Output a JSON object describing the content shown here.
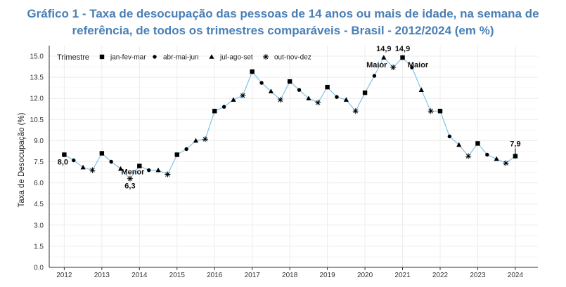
{
  "chart_data": {
    "type": "line",
    "title_line1": "Gráfico 1 - Taxa de desocupação das pessoas de 14 anos ou mais de idade, na semana de",
    "title_line2": "referência, de todos os trimestres comparáveis - Brasil - 2012/2024 (em %)",
    "ylabel": "Taxa de Desocupação (%)",
    "xlabel": "",
    "ylim": [
      0,
      15.0
    ],
    "yticks": [
      "0.0",
      "1.5",
      "3.0",
      "4.5",
      "6.0",
      "7.5",
      "9.0",
      "10.5",
      "12.0",
      "13.5",
      "15.0"
    ],
    "xticks": [
      "2012",
      "2013",
      "2014",
      "2015",
      "2016",
      "2017",
      "2018",
      "2019",
      "2020",
      "2021",
      "2022",
      "2023",
      "2024"
    ],
    "line_color": "#7fc4ea",
    "legend": {
      "title": "Trimestre",
      "placement": "top-left",
      "entries": [
        {
          "label": "jan-fev-mar",
          "marker": "square"
        },
        {
          "label": "abr-mai-jun",
          "marker": "circle"
        },
        {
          "label": "jul-ago-set",
          "marker": "triangle"
        },
        {
          "label": "out-nov-dez",
          "marker": "asterisk"
        }
      ]
    },
    "points": [
      {
        "year": 2012,
        "q": 1,
        "value": 8.0
      },
      {
        "year": 2012,
        "q": 2,
        "value": 7.6
      },
      {
        "year": 2012,
        "q": 3,
        "value": 7.1
      },
      {
        "year": 2012,
        "q": 4,
        "value": 6.9
      },
      {
        "year": 2013,
        "q": 1,
        "value": 8.1
      },
      {
        "year": 2013,
        "q": 2,
        "value": 7.5
      },
      {
        "year": 2013,
        "q": 3,
        "value": 7.0
      },
      {
        "year": 2013,
        "q": 4,
        "value": 6.3
      },
      {
        "year": 2014,
        "q": 1,
        "value": 7.2
      },
      {
        "year": 2014,
        "q": 2,
        "value": 6.9
      },
      {
        "year": 2014,
        "q": 3,
        "value": 6.9
      },
      {
        "year": 2014,
        "q": 4,
        "value": 6.6
      },
      {
        "year": 2015,
        "q": 1,
        "value": 8.0
      },
      {
        "year": 2015,
        "q": 2,
        "value": 8.4
      },
      {
        "year": 2015,
        "q": 3,
        "value": 9.0
      },
      {
        "year": 2015,
        "q": 4,
        "value": 9.1
      },
      {
        "year": 2016,
        "q": 1,
        "value": 11.1
      },
      {
        "year": 2016,
        "q": 2,
        "value": 11.4
      },
      {
        "year": 2016,
        "q": 3,
        "value": 11.9
      },
      {
        "year": 2016,
        "q": 4,
        "value": 12.2
      },
      {
        "year": 2017,
        "q": 1,
        "value": 13.9
      },
      {
        "year": 2017,
        "q": 2,
        "value": 13.1
      },
      {
        "year": 2017,
        "q": 3,
        "value": 12.5
      },
      {
        "year": 2017,
        "q": 4,
        "value": 11.9
      },
      {
        "year": 2018,
        "q": 1,
        "value": 13.2
      },
      {
        "year": 2018,
        "q": 2,
        "value": 12.6
      },
      {
        "year": 2018,
        "q": 3,
        "value": 12.0
      },
      {
        "year": 2018,
        "q": 4,
        "value": 11.7
      },
      {
        "year": 2019,
        "q": 1,
        "value": 12.8
      },
      {
        "year": 2019,
        "q": 2,
        "value": 12.1
      },
      {
        "year": 2019,
        "q": 3,
        "value": 11.9
      },
      {
        "year": 2019,
        "q": 4,
        "value": 11.1
      },
      {
        "year": 2020,
        "q": 1,
        "value": 12.4
      },
      {
        "year": 2020,
        "q": 2,
        "value": 13.6
      },
      {
        "year": 2020,
        "q": 3,
        "value": 14.9
      },
      {
        "year": 2020,
        "q": 4,
        "value": 14.2
      },
      {
        "year": 2021,
        "q": 1,
        "value": 14.9
      },
      {
        "year": 2021,
        "q": 2,
        "value": 14.2
      },
      {
        "year": 2021,
        "q": 3,
        "value": 12.6
      },
      {
        "year": 2021,
        "q": 4,
        "value": 11.1
      },
      {
        "year": 2022,
        "q": 1,
        "value": 11.1
      },
      {
        "year": 2022,
        "q": 2,
        "value": 9.3
      },
      {
        "year": 2022,
        "q": 3,
        "value": 8.7
      },
      {
        "year": 2022,
        "q": 4,
        "value": 7.9
      },
      {
        "year": 2023,
        "q": 1,
        "value": 8.8
      },
      {
        "year": 2023,
        "q": 2,
        "value": 8.0
      },
      {
        "year": 2023,
        "q": 3,
        "value": 7.7
      },
      {
        "year": 2023,
        "q": 4,
        "value": 7.4
      },
      {
        "year": 2024,
        "q": 1,
        "value": 7.9
      }
    ],
    "annotations": [
      {
        "year": 2012,
        "q": 1,
        "value": 8.0,
        "value_label": "8,0",
        "word": ""
      },
      {
        "year": 2013,
        "q": 4,
        "value": 6.3,
        "value_label": "6,3",
        "word": "Menor"
      },
      {
        "year": 2020,
        "q": 3,
        "value": 14.9,
        "value_label": "14,9",
        "word": "Maior"
      },
      {
        "year": 2021,
        "q": 1,
        "value": 14.9,
        "value_label": "14,9",
        "word": "Maior"
      },
      {
        "year": 2024,
        "q": 1,
        "value": 7.9,
        "value_label": "7,9",
        "word": ""
      }
    ]
  }
}
